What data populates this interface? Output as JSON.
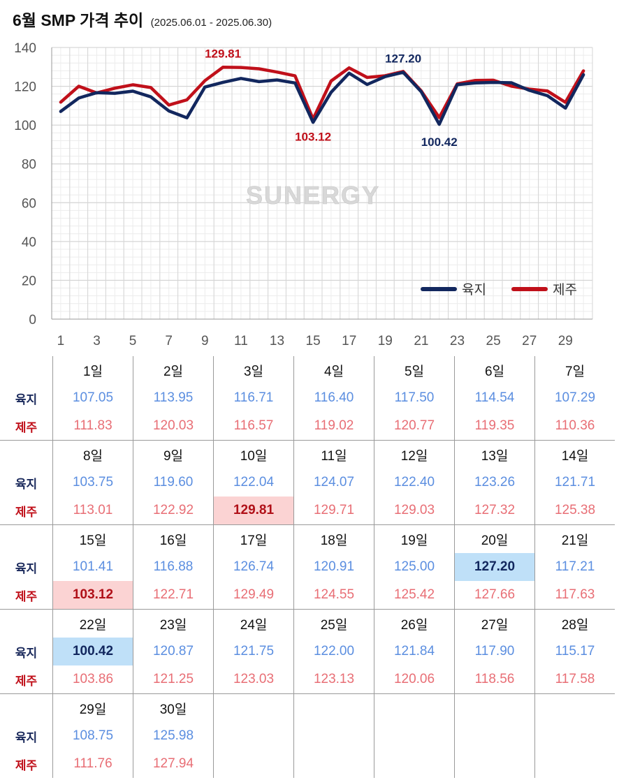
{
  "title": {
    "main": "6월 SMP 가격 추이",
    "range": "(2025.06.01 - 2025.06.30)"
  },
  "labels": {
    "yukji": "육지",
    "jeju": "제주"
  },
  "watermark": "SUNERGY",
  "colors": {
    "yukji_line": "#12275e",
    "jeju_line": "#c0101a",
    "yukji_text": "#5b8ee0",
    "jeju_text": "#e86e75",
    "yukji_highlight": "#bfe0f8",
    "jeju_highlight": "#fbd3d3"
  },
  "chart_data": {
    "type": "line",
    "x": [
      1,
      2,
      3,
      4,
      5,
      6,
      7,
      8,
      9,
      10,
      11,
      12,
      13,
      14,
      15,
      16,
      17,
      18,
      19,
      20,
      21,
      22,
      23,
      24,
      25,
      26,
      27,
      28,
      29,
      30
    ],
    "xticks": [
      "1",
      "3",
      "5",
      "7",
      "9",
      "11",
      "13",
      "15",
      "17",
      "19",
      "21",
      "23",
      "25",
      "27",
      "29"
    ],
    "ylim": [
      0,
      140
    ],
    "yticks": [
      "0",
      "20",
      "40",
      "60",
      "80",
      "100",
      "120",
      "140"
    ],
    "grid": true,
    "legend": "bottom-right",
    "series": [
      {
        "name": "육지",
        "values": [
          107.05,
          113.95,
          116.71,
          116.4,
          117.5,
          114.54,
          107.29,
          103.75,
          119.6,
          122.04,
          124.07,
          122.4,
          123.26,
          121.71,
          101.41,
          116.88,
          126.74,
          120.91,
          125.0,
          127.2,
          117.21,
          100.42,
          120.87,
          121.75,
          122.0,
          121.84,
          117.9,
          115.17,
          108.75,
          125.98
        ]
      },
      {
        "name": "제주",
        "values": [
          111.83,
          120.03,
          116.57,
          119.02,
          120.77,
          119.35,
          110.36,
          113.01,
          122.92,
          129.81,
          129.71,
          129.03,
          127.32,
          125.38,
          103.12,
          122.71,
          129.49,
          124.55,
          125.42,
          127.66,
          117.63,
          103.86,
          121.25,
          123.03,
          123.13,
          120.06,
          118.56,
          117.58,
          111.76,
          127.94
        ]
      }
    ],
    "annotations": [
      {
        "series": "제주",
        "x": 10,
        "label": "129.81",
        "position": "above"
      },
      {
        "series": "육지",
        "x": 20,
        "label": "127.20",
        "position": "above"
      },
      {
        "series": "제주",
        "x": 15,
        "label": "103.12",
        "position": "below"
      },
      {
        "series": "육지",
        "x": 22,
        "label": "100.42",
        "position": "below"
      }
    ]
  },
  "table": {
    "day_suffix": "일",
    "days": [
      "1",
      "2",
      "3",
      "4",
      "5",
      "6",
      "7",
      "8",
      "9",
      "10",
      "11",
      "12",
      "13",
      "14",
      "15",
      "16",
      "17",
      "18",
      "19",
      "20",
      "21",
      "22",
      "23",
      "24",
      "25",
      "26",
      "27",
      "28",
      "29",
      "30"
    ],
    "yukji": [
      "107.05",
      "113.95",
      "116.71",
      "116.40",
      "117.50",
      "114.54",
      "107.29",
      "103.75",
      "119.60",
      "122.04",
      "124.07",
      "122.40",
      "123.26",
      "121.71",
      "101.41",
      "116.88",
      "126.74",
      "120.91",
      "125.00",
      "127.20",
      "117.21",
      "100.42",
      "120.87",
      "121.75",
      "122.00",
      "121.84",
      "117.90",
      "115.17",
      "108.75",
      "125.98"
    ],
    "jeju": [
      "111.83",
      "120.03",
      "116.57",
      "119.02",
      "120.77",
      "119.35",
      "110.36",
      "113.01",
      "122.92",
      "129.81",
      "129.71",
      "129.03",
      "127.32",
      "125.38",
      "103.12",
      "122.71",
      "129.49",
      "124.55",
      "125.42",
      "127.66",
      "117.63",
      "103.86",
      "121.25",
      "123.03",
      "123.13",
      "120.06",
      "118.56",
      "117.58",
      "111.76",
      "127.94"
    ],
    "highlight_yukji": [
      "20",
      "22"
    ],
    "highlight_jeju": [
      "10",
      "15"
    ]
  }
}
